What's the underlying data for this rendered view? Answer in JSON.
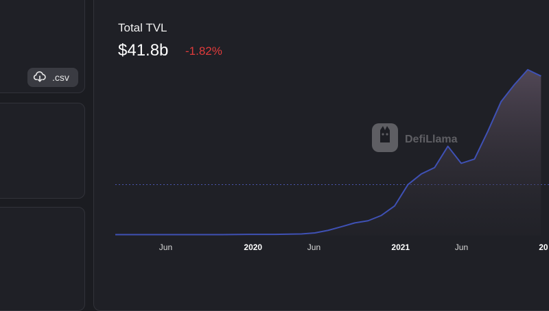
{
  "header": {
    "title": "Total TVL",
    "value": "$41.8b",
    "change": "-1.82%"
  },
  "csv_button": {
    "label": ".csv",
    "icon": "cloud-download-icon"
  },
  "watermark": {
    "text": "DefiLlama"
  },
  "colors": {
    "line": "#3f51b5",
    "change": "#e03b3b",
    "background": "#1b1c21"
  },
  "chart_data": {
    "type": "area",
    "title": "Total TVL",
    "xlabel": "",
    "ylabel": "",
    "x_ticks": [
      "Jun",
      "2020",
      "Jun",
      "2021",
      "Jun",
      "20"
    ],
    "x_tick_is_year": [
      false,
      true,
      false,
      true,
      false,
      true
    ],
    "x": [
      "2019-04",
      "2019-06",
      "2019-08",
      "2019-10",
      "2019-12",
      "2020-02",
      "2020-04",
      "2020-06",
      "2020-07",
      "2020-08",
      "2020-09",
      "2020-10",
      "2020-11",
      "2020-12",
      "2021-01",
      "2021-02",
      "2021-03",
      "2021-04",
      "2021-05",
      "2021-06",
      "2021-07",
      "2021-08",
      "2021-09",
      "2021-10",
      "2021-11",
      "2021-12"
    ],
    "values": [
      0.5,
      0.5,
      0.5,
      0.5,
      0.5,
      0.6,
      0.6,
      0.8,
      1.3,
      2.5,
      4.2,
      6.0,
      7.0,
      9.5,
      14.0,
      24.0,
      29.0,
      32.0,
      42.0,
      34.0,
      36.0,
      49.0,
      63.0,
      71.0,
      78.0,
      75.0
    ],
    "reference_line": 24,
    "grid": false,
    "legend": "none"
  }
}
